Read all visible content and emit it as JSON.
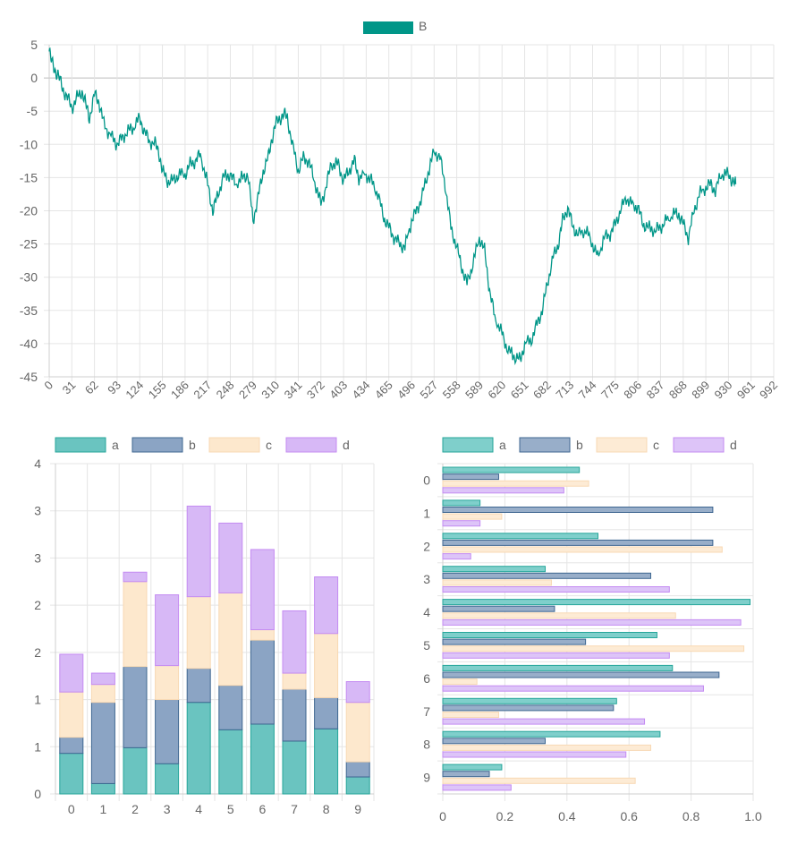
{
  "chart_data": [
    {
      "type": "line",
      "legend": [
        {
          "label": "B",
          "color": "#009688"
        }
      ],
      "series": [
        {
          "name": "B",
          "color": "#009688",
          "points": [
            [
              0,
              4
            ],
            [
              3,
              2.5
            ],
            [
              8,
              1.2
            ],
            [
              12,
              0.5
            ],
            [
              18,
              -1.5
            ],
            [
              25,
              -3
            ],
            [
              31,
              -4.5
            ],
            [
              38,
              -3
            ],
            [
              45,
              -2
            ],
            [
              50,
              -4
            ],
            [
              55,
              -6
            ],
            [
              62,
              -2.5
            ],
            [
              68,
              -3.5
            ],
            [
              75,
              -7
            ],
            [
              83,
              -8.5
            ],
            [
              93,
              -10
            ],
            [
              100,
              -9
            ],
            [
              108,
              -8
            ],
            [
              115,
              -7.5
            ],
            [
              124,
              -6
            ],
            [
              130,
              -8
            ],
            [
              137,
              -9.5
            ],
            [
              145,
              -10
            ],
            [
              150,
              -11
            ],
            [
              155,
              -14
            ],
            [
              162,
              -15.5
            ],
            [
              170,
              -15.5
            ],
            [
              177,
              -14.5
            ],
            [
              186,
              -14.5
            ],
            [
              193,
              -13
            ],
            [
              200,
              -12.5
            ],
            [
              207,
              -11.5
            ],
            [
              217,
              -16
            ],
            [
              224,
              -20
            ],
            [
              230,
              -18
            ],
            [
              238,
              -15
            ],
            [
              248,
              -14.5
            ],
            [
              255,
              -16
            ],
            [
              265,
              -15
            ],
            [
              272,
              -14.5
            ],
            [
              279,
              -21.5
            ],
            [
              286,
              -18
            ],
            [
              293,
              -14
            ],
            [
              300,
              -12
            ],
            [
              305,
              -9
            ],
            [
              310,
              -7
            ],
            [
              316,
              -6
            ],
            [
              321,
              -5.5
            ],
            [
              326,
              -6
            ],
            [
              333,
              -10
            ],
            [
              341,
              -14
            ],
            [
              348,
              -12
            ],
            [
              355,
              -12.5
            ],
            [
              362,
              -15
            ],
            [
              372,
              -19
            ],
            [
              380,
              -16
            ],
            [
              386,
              -13
            ],
            [
              396,
              -13
            ],
            [
              403,
              -15.5
            ],
            [
              410,
              -14
            ],
            [
              418,
              -12.5
            ],
            [
              424,
              -15
            ],
            [
              434,
              -14.5
            ],
            [
              441,
              -15.5
            ],
            [
              450,
              -17.5
            ],
            [
              458,
              -21
            ],
            [
              465,
              -22.5
            ],
            [
              472,
              -24
            ],
            [
              480,
              -25
            ],
            [
              487,
              -25.5
            ],
            [
              496,
              -21.5
            ],
            [
              503,
              -20
            ],
            [
              510,
              -18
            ],
            [
              517,
              -15
            ],
            [
              527,
              -11
            ],
            [
              535,
              -12
            ],
            [
              542,
              -16
            ],
            [
              550,
              -22.5
            ],
            [
              558,
              -25.5
            ],
            [
              565,
              -28.5
            ],
            [
              572,
              -31
            ],
            [
              580,
              -28
            ],
            [
              589,
              -24
            ],
            [
              596,
              -26
            ],
            [
              603,
              -32
            ],
            [
              610,
              -36
            ],
            [
              620,
              -38.5
            ],
            [
              628,
              -41
            ],
            [
              638,
              -42
            ],
            [
              645,
              -42.5
            ],
            [
              651,
              -40
            ],
            [
              660,
              -39.5
            ],
            [
              668,
              -37
            ],
            [
              675,
              -35
            ],
            [
              682,
              -31
            ],
            [
              690,
              -27
            ],
            [
              697,
              -25
            ],
            [
              703,
              -21.5
            ],
            [
              710,
              -19.5
            ],
            [
              717,
              -22.5
            ],
            [
              724,
              -23.5
            ],
            [
              735,
              -23
            ],
            [
              744,
              -25
            ],
            [
              751,
              -27
            ],
            [
              760,
              -24
            ],
            [
              768,
              -23.5
            ],
            [
              775,
              -22
            ],
            [
              782,
              -20
            ],
            [
              790,
              -18
            ],
            [
              797,
              -19
            ],
            [
              806,
              -19.5
            ],
            [
              813,
              -22
            ],
            [
              820,
              -22.5
            ],
            [
              830,
              -23
            ],
            [
              837,
              -22.5
            ],
            [
              845,
              -21.5
            ],
            [
              855,
              -20.5
            ],
            [
              862,
              -20.5
            ],
            [
              868,
              -22
            ],
            [
              875,
              -24
            ],
            [
              883,
              -20
            ],
            [
              890,
              -17.5
            ],
            [
              899,
              -16.5
            ],
            [
              906,
              -16
            ],
            [
              912,
              -17
            ],
            [
              920,
              -14.5
            ],
            [
              930,
              -14.5
            ],
            [
              936,
              -15.5
            ],
            [
              940,
              -16
            ]
          ]
        }
      ],
      "xaxis": {
        "min": 0,
        "max": 992,
        "ticks": [
          "0",
          "31",
          "62",
          "93",
          "124",
          "155",
          "186",
          "217",
          "248",
          "279",
          "310",
          "341",
          "372",
          "403",
          "434",
          "465",
          "496",
          "527",
          "558",
          "589",
          "620",
          "651",
          "682",
          "713",
          "744",
          "775",
          "806",
          "837",
          "868",
          "899",
          "930",
          "961",
          "992"
        ]
      },
      "yaxis": {
        "min": -45,
        "max": 5,
        "ticks": [
          "5",
          "0",
          "-5",
          "-10",
          "-15",
          "-20",
          "-25",
          "-30",
          "-35",
          "-40",
          "-45"
        ]
      },
      "grid": true
    },
    {
      "type": "bar",
      "stacked": true,
      "categories": [
        "0",
        "1",
        "2",
        "3",
        "4",
        "5",
        "6",
        "7",
        "8",
        "9"
      ],
      "series": [
        {
          "name": "a",
          "fill": "#6ac4c0",
          "stroke": "#26a69a",
          "values": [
            0.43,
            0.11,
            0.49,
            0.32,
            0.97,
            0.68,
            0.74,
            0.56,
            0.69,
            0.18
          ]
        },
        {
          "name": "b",
          "fill": "#8ba4c4",
          "stroke": "#3f6791",
          "values": [
            0.17,
            0.86,
            0.86,
            0.68,
            0.36,
            0.47,
            0.89,
            0.55,
            0.33,
            0.16
          ]
        },
        {
          "name": "c",
          "fill": "#fde8cd",
          "stroke": "#f8d9b4",
          "values": [
            0.48,
            0.19,
            0.9,
            0.36,
            0.76,
            0.98,
            0.11,
            0.17,
            0.68,
            0.63
          ]
        },
        {
          "name": "d",
          "fill": "#d7b8f6",
          "stroke": "#c48bf2",
          "values": [
            0.4,
            0.12,
            0.1,
            0.75,
            0.96,
            0.74,
            0.85,
            0.66,
            0.6,
            0.22
          ]
        }
      ],
      "yaxis": {
        "min": 0,
        "max": 3.5,
        "ticks": [
          "4",
          "3",
          "3",
          "2",
          "2",
          "1",
          "1",
          "0"
        ]
      },
      "legend": "top",
      "grid": true
    },
    {
      "type": "bar",
      "orientation": "horizontal",
      "categories": [
        "0",
        "1",
        "2",
        "3",
        "4",
        "5",
        "6",
        "7",
        "8",
        "9"
      ],
      "series": [
        {
          "name": "a",
          "fill": "#7fcfcb",
          "stroke": "#26a69a",
          "values": [
            0.44,
            0.12,
            0.5,
            0.33,
            0.99,
            0.69,
            0.74,
            0.56,
            0.7,
            0.19
          ]
        },
        {
          "name": "b",
          "fill": "#98aec9",
          "stroke": "#3f6791",
          "values": [
            0.18,
            0.87,
            0.87,
            0.67,
            0.36,
            0.46,
            0.89,
            0.55,
            0.33,
            0.15
          ]
        },
        {
          "name": "c",
          "fill": "#fdebd5",
          "stroke": "#f8d9b4",
          "values": [
            0.47,
            0.19,
            0.9,
            0.35,
            0.75,
            0.97,
            0.11,
            0.18,
            0.67,
            0.62
          ]
        },
        {
          "name": "d",
          "fill": "#ddc4f8",
          "stroke": "#c48bf2",
          "values": [
            0.39,
            0.12,
            0.09,
            0.73,
            0.96,
            0.73,
            0.84,
            0.65,
            0.59,
            0.22
          ]
        }
      ],
      "xaxis": {
        "min": 0,
        "max": 1.0,
        "ticks": [
          "0",
          "0.2",
          "0.4",
          "0.6",
          "0.8",
          "1.0"
        ]
      },
      "legend": "top",
      "grid": true
    }
  ]
}
